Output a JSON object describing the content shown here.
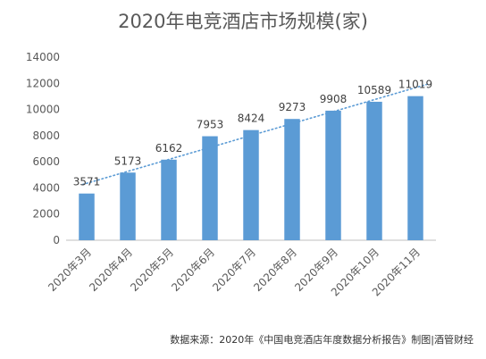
{
  "chart_data": {
    "type": "bar",
    "title": "2020年电竞酒店市场规模(家)",
    "categories": [
      "2020年3月",
      "2020年4月",
      "2020年5月",
      "2020年6月",
      "2020年7月",
      "2020年8月",
      "2020年9月",
      "2020年10月",
      "2020年11月"
    ],
    "values": [
      3571,
      5173,
      6162,
      7953,
      8424,
      9273,
      9908,
      10589,
      11019
    ],
    "ylim": [
      0,
      14000
    ],
    "yticks": [
      0,
      2000,
      4000,
      6000,
      8000,
      10000,
      12000,
      14000
    ],
    "xlabel": "",
    "ylabel": "",
    "trendline": "linear",
    "grid": false,
    "legend": "none",
    "bar_color": "#5B9BD5",
    "trend_color": "#5B9BD5"
  },
  "source": "数据来源：2020年《中国电竞酒店年度数据分析报告》制图|酒管财经"
}
